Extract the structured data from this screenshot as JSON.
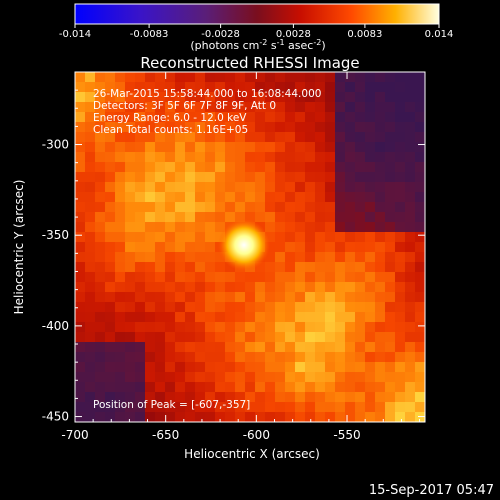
{
  "chart_data": {
    "type": "heatmap",
    "title": "Reconstructed RHESSI Image",
    "xlabel": "Heliocentric X (arcsec)",
    "ylabel": "Heliocentric Y (arcsec)",
    "xlim": [
      -700,
      -507
    ],
    "ylim": [
      -453,
      -260
    ],
    "x_ticks": [
      "-700",
      "-650",
      "-600",
      "-550"
    ],
    "x_tick_values": [
      -700,
      -650,
      -600,
      -550
    ],
    "y_ticks": [
      "-300",
      "-350",
      "-400",
      "-450"
    ],
    "y_tick_values": [
      -300,
      -350,
      -400,
      -450
    ],
    "colorbar": {
      "min": -0.014,
      "max": 0.014,
      "ticks": [
        "-0.014",
        "-0.0083",
        "-0.0028",
        "0.0028",
        "0.0083",
        "0.014"
      ],
      "tick_values": [
        -0.014,
        -0.0083,
        -0.0028,
        0.0028,
        0.0083,
        0.014
      ],
      "unit_label": "(photons cm",
      "unit_parts": [
        "(photons cm",
        "-2",
        " s",
        "-1",
        " asec",
        "-2",
        ")"
      ]
    },
    "annotations": [
      "26-Mar-2015 15:58:44.000 to 16:08:44.000",
      "Detectors: 3F 5F 6F 7F 8F 9F, Att 0",
      "Energy Range: 6.0 - 12.0 keV",
      "Clean     Total counts: 1.16E+05"
    ],
    "peak_label": "Position of Peak = [-607,-357]",
    "peak": {
      "x": -607,
      "y": -357
    },
    "colormap": "rainbow/hot (blue-purple-red-orange-yellow-white)"
  },
  "footer": {
    "timestamp": "15-Sep-2017 05:47"
  }
}
